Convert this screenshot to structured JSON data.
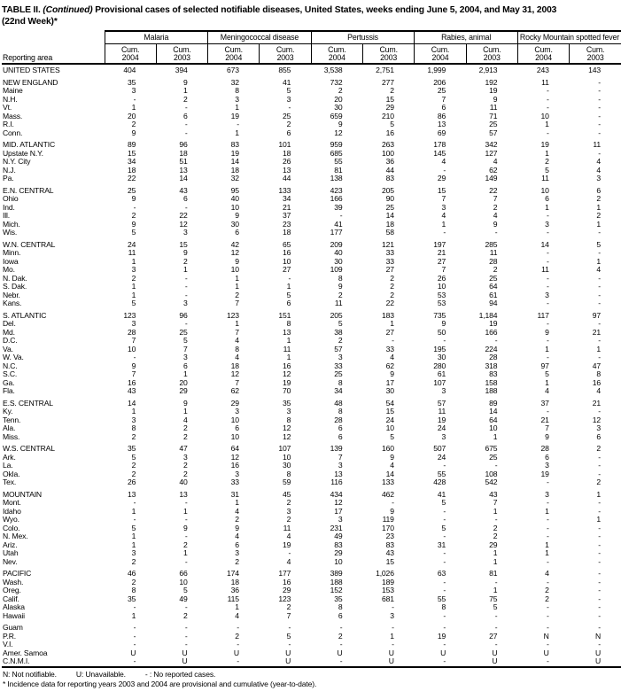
{
  "title": {
    "prefix": "TABLE II.",
    "continued": "(Continued)",
    "rest": "Provisional cases of selected notifiable diseases, United States, weeks ending June 5, 2004, and May 31, 2003",
    "week": "(22nd Week)*"
  },
  "table": {
    "area_header": "Reporting area",
    "groups": [
      "Malaria",
      "Meningococcal disease",
      "Pertussis",
      "Rabies, animal",
      "Rocky Mountain spotted fever"
    ],
    "subheader": {
      "label": "Cum.",
      "years": [
        "2004",
        "2003"
      ]
    },
    "sections": [
      {
        "rows": [
          [
            "UNITED STATES",
            "404",
            "394",
            "673",
            "855",
            "3,538",
            "2,751",
            "1,999",
            "2,913",
            "243",
            "143"
          ]
        ]
      },
      {
        "rows": [
          [
            "NEW ENGLAND",
            "35",
            "9",
            "32",
            "41",
            "732",
            "277",
            "206",
            "192",
            "11",
            "-"
          ],
          [
            "Maine",
            "3",
            "1",
            "8",
            "5",
            "2",
            "2",
            "25",
            "19",
            "-",
            "-"
          ],
          [
            "N.H.",
            "-",
            "2",
            "3",
            "3",
            "20",
            "15",
            "7",
            "9",
            "-",
            "-"
          ],
          [
            "Vt.",
            "1",
            "-",
            "1",
            "-",
            "30",
            "29",
            "6",
            "11",
            "-",
            "-"
          ],
          [
            "Mass.",
            "20",
            "6",
            "19",
            "25",
            "659",
            "210",
            "86",
            "71",
            "10",
            "-"
          ],
          [
            "R.I.",
            "2",
            "-",
            "-",
            "2",
            "9",
            "5",
            "13",
            "25",
            "1",
            "-"
          ],
          [
            "Conn.",
            "9",
            "-",
            "1",
            "6",
            "12",
            "16",
            "69",
            "57",
            "-",
            "-"
          ]
        ]
      },
      {
        "rows": [
          [
            "MID. ATLANTIC",
            "89",
            "96",
            "83",
            "101",
            "959",
            "263",
            "178",
            "342",
            "19",
            "11"
          ],
          [
            "Upstate N.Y.",
            "15",
            "18",
            "19",
            "18",
            "685",
            "100",
            "145",
            "127",
            "1",
            "-"
          ],
          [
            "N.Y. City",
            "34",
            "51",
            "14",
            "26",
            "55",
            "36",
            "4",
            "4",
            "2",
            "4"
          ],
          [
            "N.J.",
            "18",
            "13",
            "18",
            "13",
            "81",
            "44",
            "-",
            "62",
            "5",
            "4"
          ],
          [
            "Pa.",
            "22",
            "14",
            "32",
            "44",
            "138",
            "83",
            "29",
            "149",
            "11",
            "3"
          ]
        ]
      },
      {
        "rows": [
          [
            "E.N. CENTRAL",
            "25",
            "43",
            "95",
            "133",
            "423",
            "205",
            "15",
            "22",
            "10",
            "6"
          ],
          [
            "Ohio",
            "9",
            "6",
            "40",
            "34",
            "166",
            "90",
            "7",
            "7",
            "6",
            "2"
          ],
          [
            "Ind.",
            "-",
            "-",
            "10",
            "21",
            "39",
            "25",
            "3",
            "2",
            "1",
            "1"
          ],
          [
            "Ill.",
            "2",
            "22",
            "9",
            "37",
            "-",
            "14",
            "4",
            "4",
            "-",
            "2"
          ],
          [
            "Mich.",
            "9",
            "12",
            "30",
            "23",
            "41",
            "18",
            "1",
            "9",
            "3",
            "1"
          ],
          [
            "Wis.",
            "5",
            "3",
            "6",
            "18",
            "177",
            "58",
            "-",
            "-",
            "-",
            "-"
          ]
        ]
      },
      {
        "rows": [
          [
            "W.N. CENTRAL",
            "24",
            "15",
            "42",
            "65",
            "209",
            "121",
            "197",
            "285",
            "14",
            "5"
          ],
          [
            "Minn.",
            "11",
            "9",
            "12",
            "16",
            "40",
            "33",
            "21",
            "11",
            "-",
            "-"
          ],
          [
            "Iowa",
            "1",
            "2",
            "9",
            "10",
            "30",
            "33",
            "27",
            "28",
            "-",
            "1"
          ],
          [
            "Mo.",
            "3",
            "1",
            "10",
            "27",
            "109",
            "27",
            "7",
            "2",
            "11",
            "4"
          ],
          [
            "N. Dak.",
            "2",
            "-",
            "1",
            "-",
            "8",
            "2",
            "26",
            "25",
            "-",
            "-"
          ],
          [
            "S. Dak.",
            "1",
            "-",
            "1",
            "1",
            "9",
            "2",
            "10",
            "64",
            "-",
            "-"
          ],
          [
            "Nebr.",
            "1",
            "-",
            "2",
            "5",
            "2",
            "2",
            "53",
            "61",
            "3",
            "-"
          ],
          [
            "Kans.",
            "5",
            "3",
            "7",
            "6",
            "11",
            "22",
            "53",
            "94",
            "-",
            "-"
          ]
        ]
      },
      {
        "rows": [
          [
            "S. ATLANTIC",
            "123",
            "96",
            "123",
            "151",
            "205",
            "183",
            "735",
            "1,184",
            "117",
            "97"
          ],
          [
            "Del.",
            "3",
            "-",
            "1",
            "8",
            "5",
            "1",
            "9",
            "19",
            "-",
            "-"
          ],
          [
            "Md.",
            "28",
            "25",
            "7",
            "13",
            "38",
            "27",
            "50",
            "166",
            "9",
            "21"
          ],
          [
            "D.C.",
            "7",
            "5",
            "4",
            "1",
            "2",
            "-",
            "-",
            "-",
            "-",
            "-"
          ],
          [
            "Va.",
            "10",
            "7",
            "8",
            "11",
            "57",
            "33",
            "195",
            "224",
            "1",
            "1"
          ],
          [
            "W. Va.",
            "-",
            "3",
            "4",
            "1",
            "3",
            "4",
            "30",
            "28",
            "-",
            "-"
          ],
          [
            "N.C.",
            "9",
            "6",
            "18",
            "16",
            "33",
            "62",
            "280",
            "318",
            "97",
            "47"
          ],
          [
            "S.C.",
            "7",
            "1",
            "12",
            "12",
            "25",
            "9",
            "61",
            "83",
            "5",
            "8"
          ],
          [
            "Ga.",
            "16",
            "20",
            "7",
            "19",
            "8",
            "17",
            "107",
            "158",
            "1",
            "16"
          ],
          [
            "Fla.",
            "43",
            "29",
            "62",
            "70",
            "34",
            "30",
            "3",
            "188",
            "4",
            "4"
          ]
        ]
      },
      {
        "rows": [
          [
            "E.S. CENTRAL",
            "14",
            "9",
            "29",
            "35",
            "48",
            "54",
            "57",
            "89",
            "37",
            "21"
          ],
          [
            "Ky.",
            "1",
            "1",
            "3",
            "3",
            "8",
            "15",
            "11",
            "14",
            "-",
            "-"
          ],
          [
            "Tenn.",
            "3",
            "4",
            "10",
            "8",
            "28",
            "24",
            "19",
            "64",
            "21",
            "12"
          ],
          [
            "Ala.",
            "8",
            "2",
            "6",
            "12",
            "6",
            "10",
            "24",
            "10",
            "7",
            "3"
          ],
          [
            "Miss.",
            "2",
            "2",
            "10",
            "12",
            "6",
            "5",
            "3",
            "1",
            "9",
            "6"
          ]
        ]
      },
      {
        "rows": [
          [
            "W.S. CENTRAL",
            "35",
            "47",
            "64",
            "107",
            "139",
            "160",
            "507",
            "675",
            "28",
            "2"
          ],
          [
            "Ark.",
            "5",
            "3",
            "12",
            "10",
            "7",
            "9",
            "24",
            "25",
            "6",
            "-"
          ],
          [
            "La.",
            "2",
            "2",
            "16",
            "30",
            "3",
            "4",
            "-",
            "-",
            "3",
            "-"
          ],
          [
            "Okla.",
            "2",
            "2",
            "3",
            "8",
            "13",
            "14",
            "55",
            "108",
            "19",
            "-"
          ],
          [
            "Tex.",
            "26",
            "40",
            "33",
            "59",
            "116",
            "133",
            "428",
            "542",
            "-",
            "2"
          ]
        ]
      },
      {
        "rows": [
          [
            "MOUNTAIN",
            "13",
            "13",
            "31",
            "45",
            "434",
            "462",
            "41",
            "43",
            "3",
            "1"
          ],
          [
            "Mont.",
            "-",
            "-",
            "1",
            "2",
            "12",
            "-",
            "5",
            "7",
            "-",
            "-"
          ],
          [
            "Idaho",
            "1",
            "1",
            "4",
            "3",
            "17",
            "9",
            "-",
            "1",
            "1",
            "-"
          ],
          [
            "Wyo.",
            "-",
            "-",
            "2",
            "2",
            "3",
            "119",
            "-",
            "-",
            "-",
            "1"
          ],
          [
            "Colo.",
            "5",
            "9",
            "9",
            "11",
            "231",
            "170",
            "5",
            "2",
            "-",
            "-"
          ],
          [
            "N. Mex.",
            "1",
            "-",
            "4",
            "4",
            "49",
            "23",
            "-",
            "2",
            "-",
            "-"
          ],
          [
            "Ariz.",
            "1",
            "2",
            "6",
            "19",
            "83",
            "83",
            "31",
            "29",
            "1",
            "-"
          ],
          [
            "Utah",
            "3",
            "1",
            "3",
            "-",
            "29",
            "43",
            "-",
            "1",
            "1",
            "-"
          ],
          [
            "Nev.",
            "2",
            "-",
            "2",
            "4",
            "10",
            "15",
            "-",
            "1",
            "-",
            "-"
          ]
        ]
      },
      {
        "rows": [
          [
            "PACIFIC",
            "46",
            "66",
            "174",
            "177",
            "389",
            "1,026",
            "63",
            "81",
            "4",
            "-"
          ],
          [
            "Wash.",
            "2",
            "10",
            "18",
            "16",
            "188",
            "189",
            "-",
            "-",
            "-",
            "-"
          ],
          [
            "Oreg.",
            "8",
            "5",
            "36",
            "29",
            "152",
            "153",
            "-",
            "1",
            "2",
            "-"
          ],
          [
            "Calif.",
            "35",
            "49",
            "115",
            "123",
            "35",
            "681",
            "55",
            "75",
            "2",
            "-"
          ],
          [
            "Alaska",
            "-",
            "-",
            "1",
            "2",
            "8",
            "-",
            "8",
            "5",
            "-",
            "-"
          ],
          [
            "Hawaii",
            "1",
            "2",
            "4",
            "7",
            "6",
            "3",
            "-",
            "-",
            "-",
            "-"
          ]
        ]
      },
      {
        "rows": [
          [
            "Guam",
            "-",
            "-",
            "-",
            "-",
            "-",
            "-",
            "-",
            "-",
            "-",
            "-"
          ],
          [
            "P.R.",
            "-",
            "-",
            "2",
            "5",
            "2",
            "1",
            "19",
            "27",
            "N",
            "N"
          ],
          [
            "V.I.",
            "-",
            "-",
            "-",
            "-",
            "-",
            "-",
            "-",
            "-",
            "-",
            "-"
          ],
          [
            "Amer. Samoa",
            "U",
            "U",
            "U",
            "U",
            "U",
            "U",
            "U",
            "U",
            "U",
            "U"
          ],
          [
            "C.N.M.I.",
            "-",
            "U",
            "-",
            "U",
            "-",
            "U",
            "-",
            "U",
            "-",
            "U"
          ]
        ]
      }
    ]
  },
  "footnotes": {
    "legend": [
      "N: Not notifiable.",
      "U: Unavailable.",
      "- : No reported cases."
    ],
    "note": "* Incidence data for reporting years 2003 and 2004 are provisional and cumulative (year-to-date)."
  }
}
